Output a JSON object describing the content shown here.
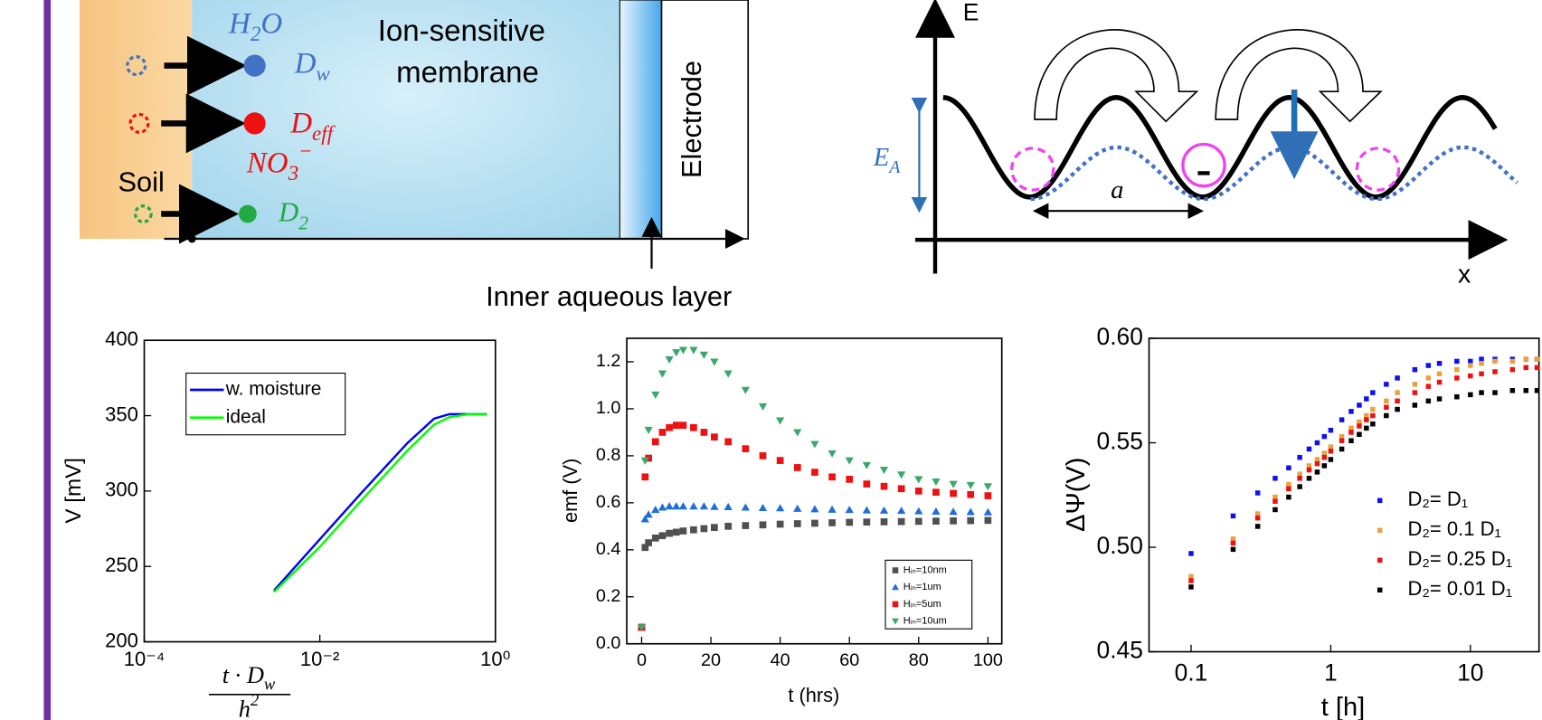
{
  "diagram_membrane": {
    "water": {
      "base": "H",
      "sub": "2",
      "tail": "O"
    },
    "membrane_line1": "Ion-sensitive",
    "membrane_line2": "membrane",
    "d_water": {
      "base": "D",
      "sub": "w"
    },
    "d_eff": {
      "base": "D",
      "sub": "eff"
    },
    "nitrate": {
      "base": "NO",
      "sub": "3",
      "sup": "−"
    },
    "soil": "Soil",
    "d_2": {
      "base": "D",
      "sub": "2"
    },
    "electrode": "Electrode",
    "inner_layer": "Inner aqueous layer"
  },
  "diagram_energy": {
    "y_axis": "E",
    "x_axis": "x",
    "barrier": {
      "base": "E",
      "sub": "A"
    },
    "spacing": "a"
  },
  "chart_data": [
    {
      "type": "line",
      "xlabel": {
        "numerator": {
          "base": "t · D",
          "sub": "w"
        },
        "denominator": {
          "base": "h",
          "sup": "2"
        }
      },
      "ylabel": "V [mV]",
      "x": [
        0.003,
        0.01,
        0.03,
        0.1,
        0.2,
        0.3,
        0.5,
        0.8
      ],
      "series": [
        {
          "name": "w. moisture",
          "color": "#0000ff",
          "values": [
            234,
            268,
            299,
            332,
            348,
            351,
            351,
            351
          ]
        },
        {
          "name": "ideal",
          "color": "#00ff00",
          "values": [
            233,
            263,
            294,
            327,
            344,
            349,
            351,
            351
          ]
        }
      ],
      "xscale": "log",
      "xlim": [
        0.0001,
        1
      ],
      "xticks": [
        {
          "value": 0.0001,
          "label": "10⁻⁴"
        },
        {
          "value": 0.01,
          "label": "10⁻²"
        },
        {
          "value": 1,
          "label": "10⁰"
        }
      ],
      "ylim": [
        200,
        400
      ],
      "yticks": [
        200,
        250,
        300,
        350,
        400
      ],
      "legend": "upper left"
    },
    {
      "type": "scatter",
      "xlabel": "t (hrs)",
      "ylabel": "emf (V)",
      "x": [
        0,
        1,
        2,
        4,
        6,
        8,
        10,
        12,
        15,
        18,
        21,
        25,
        30,
        35,
        40,
        45,
        50,
        55,
        60,
        65,
        70,
        75,
        80,
        85,
        90,
        95,
        100
      ],
      "series": [
        {
          "name": "Hᵢₙ=10nm",
          "color": "#505050",
          "marker": "square",
          "values": [
            0.07,
            0.41,
            0.43,
            0.45,
            0.46,
            0.47,
            0.475,
            0.48,
            0.485,
            0.49,
            0.495,
            0.5,
            0.503,
            0.506,
            0.509,
            0.511,
            0.513,
            0.515,
            0.517,
            0.518,
            0.519,
            0.52,
            0.521,
            0.522,
            0.523,
            0.524,
            0.525
          ]
        },
        {
          "name": "Hᵢₙ=1um",
          "color": "#1f6fd6",
          "marker": "triangle-up",
          "values": [
            0.07,
            0.53,
            0.55,
            0.57,
            0.58,
            0.585,
            0.585,
            0.585,
            0.585,
            0.585,
            0.583,
            0.582,
            0.58,
            0.578,
            0.577,
            0.575,
            0.573,
            0.571,
            0.57,
            0.568,
            0.567,
            0.566,
            0.564,
            0.563,
            0.562,
            0.561,
            0.56
          ]
        },
        {
          "name": "Hᵢₙ=5um",
          "color": "#ee1111",
          "marker": "square",
          "values": [
            0.07,
            0.71,
            0.79,
            0.86,
            0.9,
            0.92,
            0.93,
            0.93,
            0.92,
            0.9,
            0.88,
            0.86,
            0.83,
            0.8,
            0.78,
            0.75,
            0.73,
            0.71,
            0.7,
            0.68,
            0.67,
            0.66,
            0.65,
            0.645,
            0.64,
            0.635,
            0.63
          ]
        },
        {
          "name": "Hᵢₙ=10um",
          "color": "#3aa86b",
          "marker": "triangle-down",
          "values": [
            0.07,
            0.78,
            0.91,
            1.06,
            1.15,
            1.21,
            1.24,
            1.25,
            1.25,
            1.23,
            1.2,
            1.15,
            1.08,
            1.01,
            0.95,
            0.9,
            0.85,
            0.81,
            0.78,
            0.76,
            0.74,
            0.72,
            0.7,
            0.69,
            0.68,
            0.675,
            0.67
          ]
        }
      ],
      "xlim": [
        -4.3,
        104
      ],
      "xticks": [
        0,
        20,
        40,
        60,
        80,
        100
      ],
      "ylim": [
        0,
        1.3
      ],
      "yticks": [
        {
          "value": 0,
          "label": "0.0"
        },
        0.2,
        0.4,
        0.6,
        0.8,
        {
          "value": 1,
          "label": "1.0"
        },
        1.2
      ],
      "legend": "lower right"
    },
    {
      "type": "scatter",
      "xlabel": "t [h]",
      "ylabel": "ΔΨ(V)",
      "x": [
        0.1,
        0.2,
        0.3,
        0.4,
        0.5,
        0.6,
        0.7,
        0.8,
        0.9,
        1,
        1.2,
        1.4,
        1.6,
        1.8,
        2,
        2.5,
        3,
        4,
        5,
        6,
        8,
        10,
        12,
        15,
        20,
        25,
        30
      ],
      "series": [
        {
          "name": "D₂= D₁",
          "color": "#1010ee",
          "marker": "square",
          "values": [
            0.497,
            0.515,
            0.526,
            0.533,
            0.538,
            0.543,
            0.547,
            0.55,
            0.553,
            0.556,
            0.561,
            0.565,
            0.568,
            0.571,
            0.574,
            0.578,
            0.581,
            0.585,
            0.587,
            0.588,
            0.589,
            0.589,
            0.59,
            0.59,
            0.59,
            0.59,
            0.59
          ]
        },
        {
          "name": "D₂= 0.1 D₁",
          "color": "#e8a33c",
          "marker": "square",
          "values": [
            0.486,
            0.504,
            0.516,
            0.524,
            0.53,
            0.535,
            0.539,
            0.542,
            0.545,
            0.548,
            0.553,
            0.557,
            0.56,
            0.563,
            0.566,
            0.57,
            0.574,
            0.578,
            0.581,
            0.583,
            0.585,
            0.587,
            0.588,
            0.589,
            0.589,
            0.59,
            0.59
          ]
        },
        {
          "name": "D₂= 0.25 D₁",
          "color": "#ee1111",
          "marker": "square",
          "values": [
            0.484,
            0.502,
            0.514,
            0.522,
            0.528,
            0.533,
            0.537,
            0.54,
            0.543,
            0.546,
            0.551,
            0.555,
            0.558,
            0.561,
            0.563,
            0.567,
            0.57,
            0.574,
            0.577,
            0.579,
            0.581,
            0.582,
            0.583,
            0.584,
            0.585,
            0.586,
            0.586
          ]
        },
        {
          "name": "D₂= 0.01 D₁",
          "color": "#000000",
          "marker": "square",
          "values": [
            0.481,
            0.499,
            0.51,
            0.518,
            0.524,
            0.529,
            0.533,
            0.536,
            0.539,
            0.542,
            0.547,
            0.551,
            0.554,
            0.557,
            0.559,
            0.563,
            0.566,
            0.568,
            0.57,
            0.571,
            0.572,
            0.573,
            0.574,
            0.574,
            0.575,
            0.575,
            0.575
          ]
        }
      ],
      "xscale": "log",
      "xlim": [
        0.05,
        31
      ],
      "xticks": [
        0.1,
        1,
        10
      ],
      "ylim": [
        0.45,
        0.6
      ],
      "yticks": [
        0.45,
        {
          "value": 0.5,
          "label": "0.50"
        },
        0.55,
        {
          "value": 0.6,
          "label": "0.60"
        }
      ],
      "legend": "lower right"
    }
  ]
}
